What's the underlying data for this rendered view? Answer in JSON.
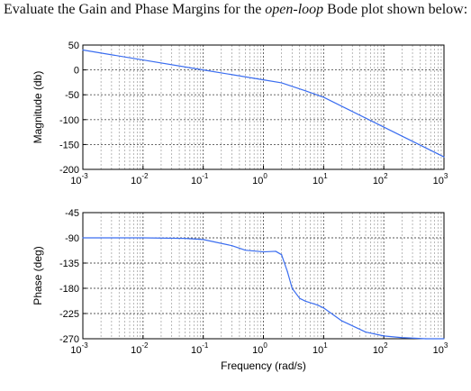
{
  "question": {
    "prefix": "Evaluate the Gain and Phase Margins for the ",
    "emphasis": "open-loop",
    "suffix": " Bode plot shown below:"
  },
  "chart_data": [
    {
      "type": "line",
      "name": "magnitude",
      "ylabel": "Magnitude (db)",
      "xlabel": "",
      "xscale": "log",
      "xlim": [
        0.001,
        1000
      ],
      "ylim": [
        -200,
        50
      ],
      "yticks": [
        50,
        0,
        -50,
        -100,
        -150,
        -200
      ],
      "xticks": [
        0.001,
        0.01,
        0.1,
        1,
        10,
        100,
        1000
      ],
      "xtick_labels": [
        [
          "10",
          "-3"
        ],
        [
          "10",
          "-2"
        ],
        [
          "10",
          "-1"
        ],
        [
          "10",
          "0"
        ],
        [
          "10",
          "1"
        ],
        [
          "10",
          "2"
        ],
        [
          "10",
          "3"
        ]
      ],
      "grid": true,
      "color": "#3a6df0",
      "series": [
        {
          "x": [
            0.001,
            0.01,
            0.1,
            1,
            2,
            5,
            10,
            100,
            1000
          ],
          "y": [
            40,
            20,
            0,
            -20,
            -26,
            -42,
            -55,
            -115,
            -175
          ]
        }
      ]
    },
    {
      "type": "line",
      "name": "phase",
      "ylabel": "Phase (deg)",
      "xlabel": "Frequency (rad/s)",
      "xscale": "log",
      "xlim": [
        0.001,
        1000
      ],
      "ylim": [
        -270,
        -45
      ],
      "yticks": [
        -45,
        -90,
        -135,
        -180,
        -225,
        -270
      ],
      "xticks": [
        0.001,
        0.01,
        0.1,
        1,
        10,
        100,
        1000
      ],
      "xtick_labels": [
        [
          "10",
          "-3"
        ],
        [
          "10",
          "-2"
        ],
        [
          "10",
          "-1"
        ],
        [
          "10",
          "0"
        ],
        [
          "10",
          "1"
        ],
        [
          "10",
          "2"
        ],
        [
          "10",
          "3"
        ]
      ],
      "grid": true,
      "color": "#3a6df0",
      "series": [
        {
          "x": [
            0.001,
            0.01,
            0.05,
            0.1,
            0.3,
            0.5,
            1,
            1.6,
            2,
            2.5,
            3,
            4,
            5,
            8,
            10,
            20,
            50,
            100,
            200,
            500,
            1000
          ],
          "y": [
            -90,
            -90,
            -91,
            -93,
            -104,
            -112,
            -115,
            -114,
            -120,
            -150,
            -180,
            -198,
            -203,
            -210,
            -215,
            -238,
            -258,
            -265,
            -268,
            -270,
            -270
          ]
        }
      ]
    }
  ]
}
